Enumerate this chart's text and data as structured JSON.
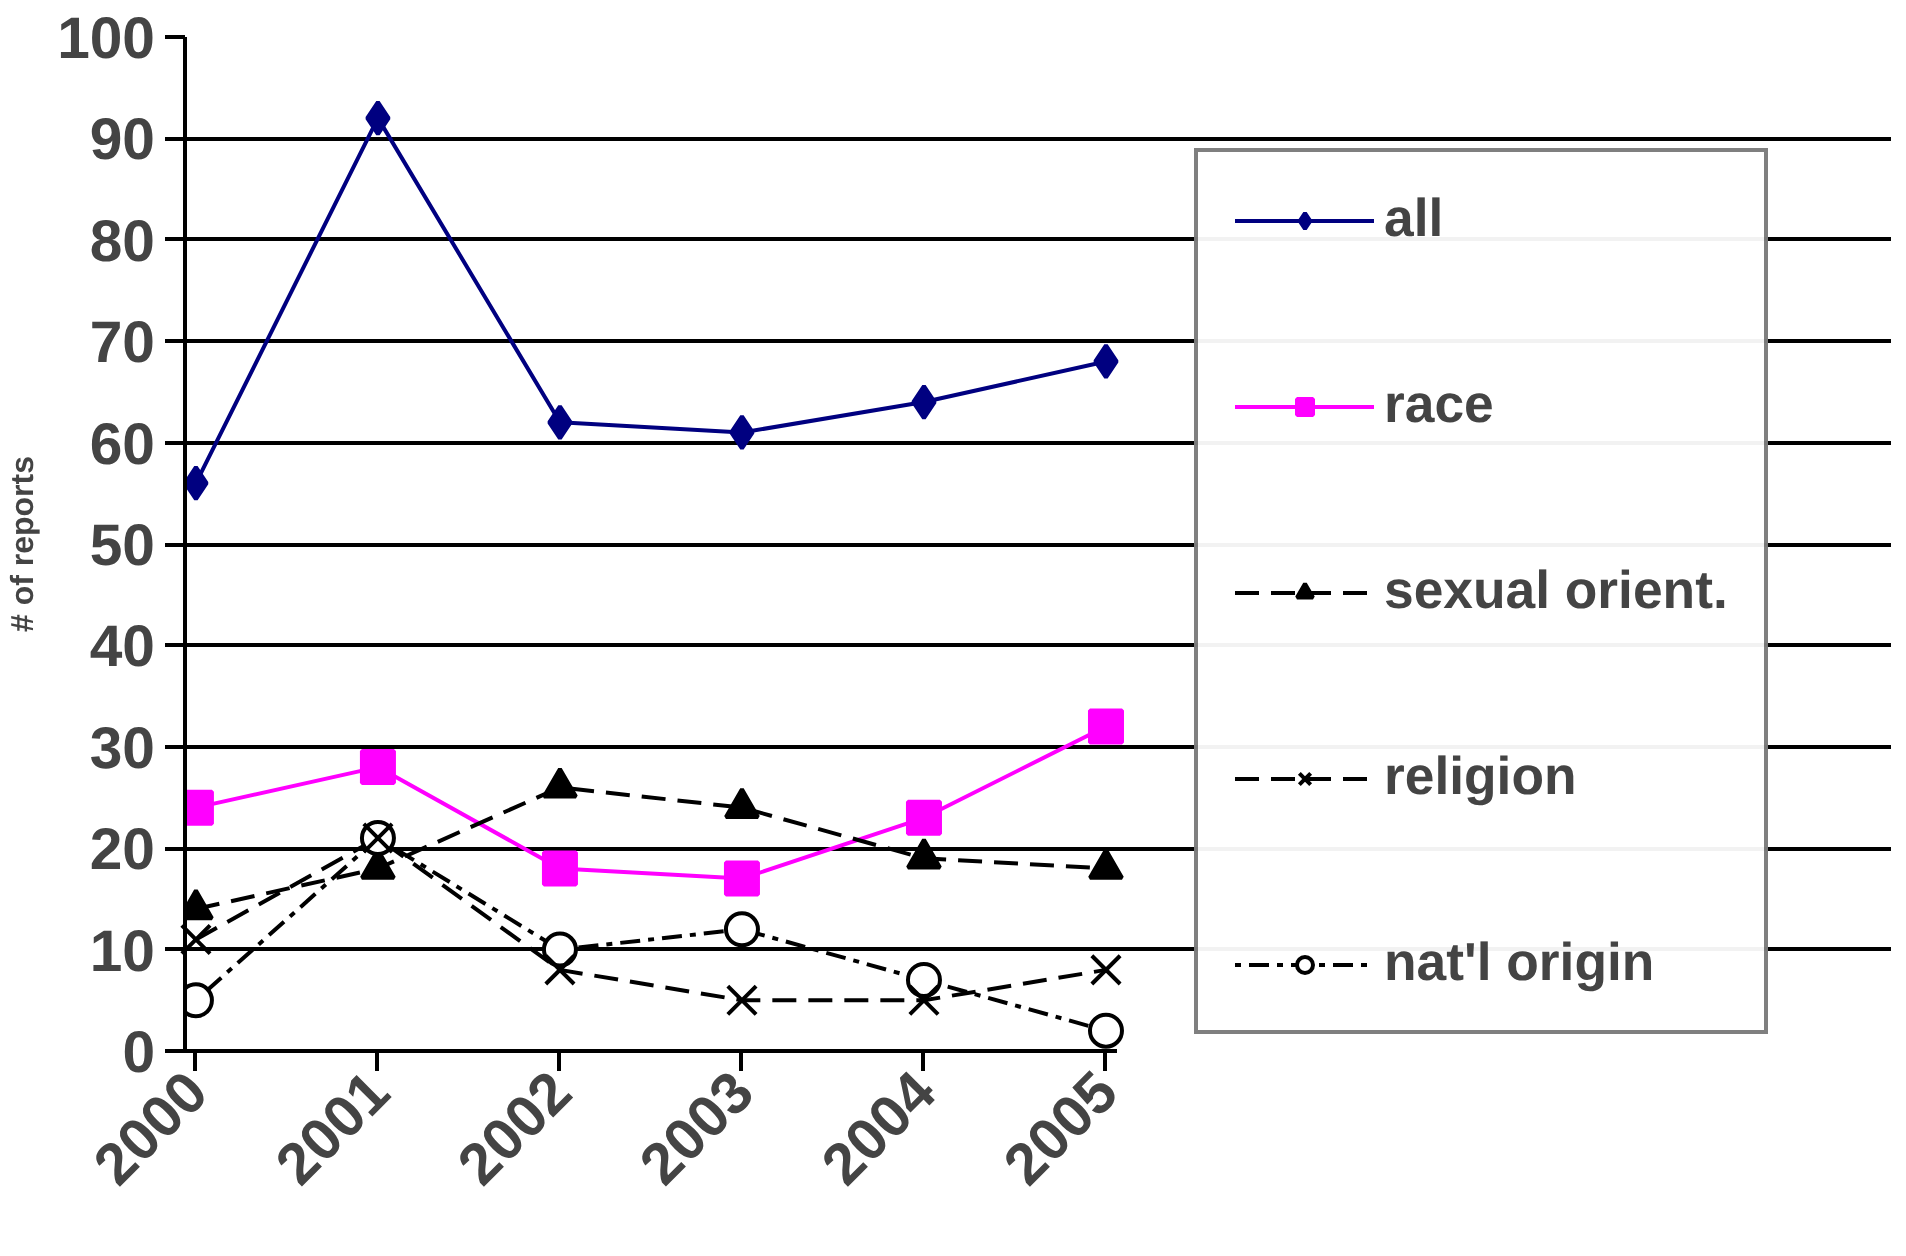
{
  "chart_data": {
    "type": "line",
    "ylabel": "# of reports",
    "categories": [
      "2000",
      "2001",
      "2002",
      "2003",
      "2004",
      "2005"
    ],
    "ylim": [
      0,
      100
    ],
    "yticks": [
      0,
      10,
      20,
      30,
      40,
      50,
      60,
      70,
      80,
      90,
      100
    ],
    "grid": "y",
    "legend": "right",
    "series": [
      {
        "name": "all",
        "color": "#000080",
        "values": [
          56,
          92,
          62,
          61,
          64,
          68
        ],
        "marker": "diamond",
        "line_style": "solid"
      },
      {
        "name": "race",
        "color": "#ff00ff",
        "values": [
          24,
          28,
          18,
          17,
          23,
          32
        ],
        "marker": "square",
        "line_style": "solid"
      },
      {
        "name": "sexual orient.",
        "color": "#000000",
        "values": [
          14,
          18,
          26,
          24,
          19,
          18
        ],
        "marker": "triangle",
        "line_style": "dashed"
      },
      {
        "name": "religion",
        "color": "#000000",
        "values": [
          11,
          21,
          8,
          5,
          5,
          8
        ],
        "marker": "cross",
        "line_style": "dashed"
      },
      {
        "name": "nat'l origin",
        "color": "#000000",
        "values": [
          5,
          21,
          10,
          12,
          7,
          2
        ],
        "marker": "circle",
        "line_style": "dotted"
      }
    ]
  }
}
